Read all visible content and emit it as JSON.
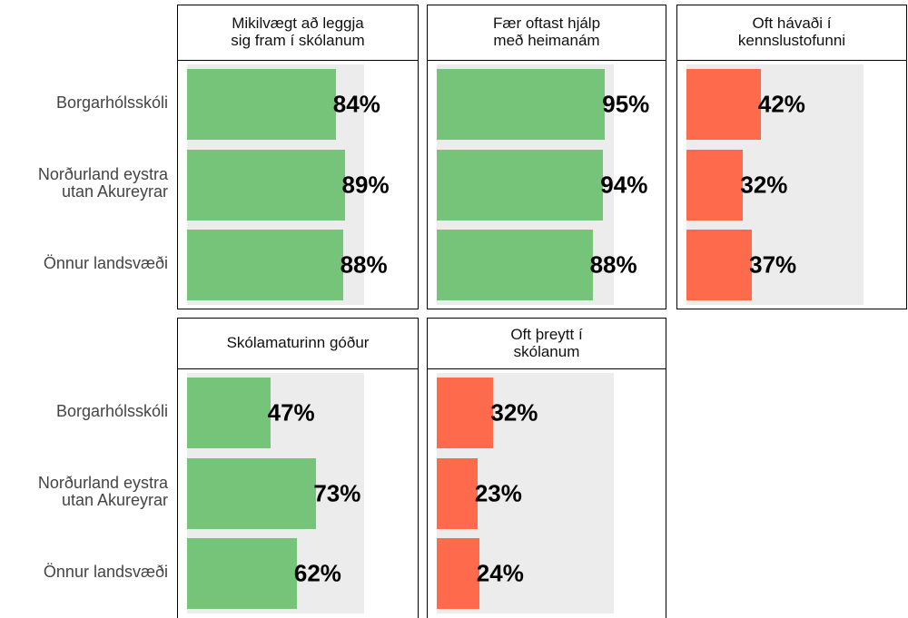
{
  "chart_data": [
    {
      "type": "bar",
      "title": "Mikilvægt að leggja\nsig fram í skólanum",
      "categories": [
        "Borgarhólsskóli",
        "Norðurland eystra\nutan Akureyrar",
        "Önnur landsvæði"
      ],
      "values": [
        84,
        89,
        88
      ],
      "value_labels": [
        "84%",
        "89%",
        "88%"
      ],
      "color": "#76c479",
      "xlim": [
        0,
        100
      ]
    },
    {
      "type": "bar",
      "title": "Fær oftast hjálp\nmeð heimanám",
      "categories": [
        "Borgarhólsskóli",
        "Norðurland eystra\nutan Akureyrar",
        "Önnur landsvæði"
      ],
      "values": [
        95,
        94,
        88
      ],
      "value_labels": [
        "95%",
        "94%",
        "88%"
      ],
      "color": "#76c479",
      "xlim": [
        0,
        100
      ]
    },
    {
      "type": "bar",
      "title": "Oft hávaði í\nkennslustofunni",
      "categories": [
        "Borgarhólsskóli",
        "Norðurland eystra\nutan Akureyrar",
        "Önnur landsvæði"
      ],
      "values": [
        42,
        32,
        37
      ],
      "value_labels": [
        "42%",
        "32%",
        "37%"
      ],
      "color": "#fe6b4c",
      "xlim": [
        0,
        100
      ]
    },
    {
      "type": "bar",
      "title": "Skólamaturinn góður",
      "categories": [
        "Borgarhólsskóli",
        "Norðurland eystra\nutan Akureyrar",
        "Önnur landsvæði"
      ],
      "values": [
        47,
        73,
        62
      ],
      "value_labels": [
        "47%",
        "73%",
        "62%"
      ],
      "color": "#76c479",
      "xlim": [
        0,
        100
      ]
    },
    {
      "type": "bar",
      "title": "Oft þreytt í\nskólanum",
      "categories": [
        "Borgarhólsskóli",
        "Norðurland eystra\nutan Akureyrar",
        "Önnur landsvæði"
      ],
      "values": [
        32,
        23,
        24
      ],
      "value_labels": [
        "32%",
        "23%",
        "24%"
      ],
      "color": "#fe6b4c",
      "xlim": [
        0,
        100
      ]
    }
  ]
}
